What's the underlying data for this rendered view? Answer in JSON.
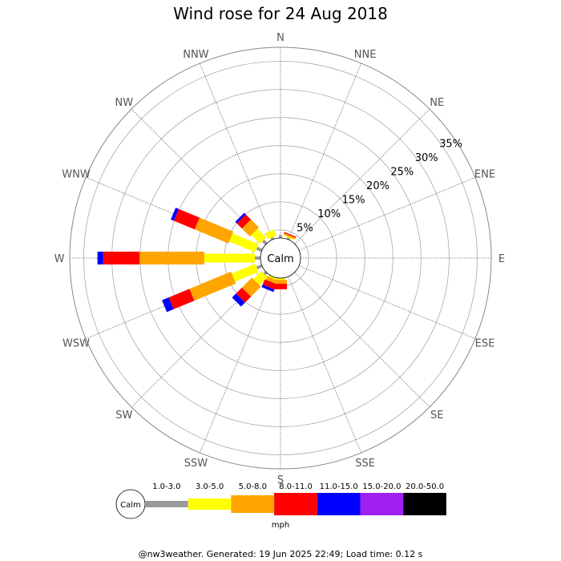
{
  "chart_data": {
    "type": "wind-rose",
    "title": "Wind rose for 24 Aug 2018",
    "directions": [
      "N",
      "NNE",
      "NE",
      "ENE",
      "E",
      "ESE",
      "SE",
      "SSE",
      "S",
      "SSW",
      "SW",
      "WSW",
      "W",
      "WNW",
      "NW",
      "NNW"
    ],
    "ring_labels": [
      "5%",
      "10%",
      "15%",
      "20%",
      "25%",
      "30%",
      "35%"
    ],
    "rmax_percent": 37.5,
    "calm_label": "Calm",
    "speed_bins": [
      {
        "label": "1.0-3.0",
        "color": "#999999"
      },
      {
        "label": "3.0-5.0",
        "color": "#ffff00"
      },
      {
        "label": "5.0-8.0",
        "color": "#ffa500"
      },
      {
        "label": "8.0-11.0",
        "color": "#ff0000"
      },
      {
        "label": "11.0-15.0",
        "color": "#0000ff"
      },
      {
        "label": "15.0-20.0",
        "color": "#a020f0"
      },
      {
        "label": "20.0-50.0",
        "color": "#000000"
      }
    ],
    "units": "mph",
    "frequencies_percent": {
      "N": [
        0.5,
        0,
        0,
        0,
        0,
        0,
        0
      ],
      "NNE": [
        0.3,
        0.2,
        0.3,
        0.2,
        0,
        0,
        0
      ],
      "NE": [
        0,
        0,
        0,
        0,
        0,
        0,
        0
      ],
      "ENE": [
        0,
        0,
        0,
        0,
        0,
        0,
        0
      ],
      "E": [
        0,
        0,
        0,
        0,
        0,
        0,
        0
      ],
      "ESE": [
        0,
        0,
        0,
        0,
        0,
        0,
        0
      ],
      "SE": [
        0,
        0,
        0,
        0,
        0,
        0,
        0
      ],
      "SSE": [
        0,
        0,
        0,
        0,
        0,
        0,
        0
      ],
      "S": [
        0,
        0.3,
        0.7,
        1.0,
        0,
        0,
        0
      ],
      "SSW": [
        0,
        0.3,
        0.7,
        1.0,
        0.5,
        0,
        0
      ],
      "SW": [
        0.5,
        2.0,
        2.5,
        1.5,
        1.0,
        0,
        0
      ],
      "WSW": [
        1.0,
        4.5,
        8.0,
        4.0,
        1.3,
        0,
        0
      ],
      "W": [
        1.0,
        9.0,
        11.5,
        6.5,
        1.0,
        0,
        0
      ],
      "WNW": [
        1.0,
        5.0,
        6.5,
        4.0,
        0.6,
        0,
        0
      ],
      "NW": [
        0.8,
        2.2,
        2.0,
        1.3,
        0.4,
        0,
        0
      ],
      "NNW": [
        0.4,
        1.2,
        0,
        0,
        0,
        0,
        0
      ]
    }
  },
  "footer": "@nw3weather. Generated: 19 Jun 2025 22:49; Load time: 0.12 s"
}
